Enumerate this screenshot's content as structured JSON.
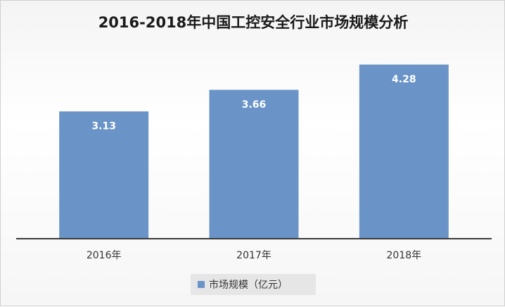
{
  "chart_data": {
    "type": "bar",
    "title": "2016-2018年中国工控安全行业市场规模分析",
    "categories": [
      "2016年",
      "2017年",
      "2018年"
    ],
    "series": [
      {
        "name": "市场规模（亿元）",
        "values": [
          3.13,
          3.66,
          4.28
        ]
      }
    ],
    "value_labels": [
      "3.13",
      "3.66",
      "4.28"
    ],
    "ylim": [
      0,
      4.8
    ],
    "grid": false,
    "legend_position": "bottom",
    "colors": {
      "bar": "#6a94c7",
      "axis": "#3a3a3a",
      "legend_box": "#e6e6e6"
    }
  }
}
